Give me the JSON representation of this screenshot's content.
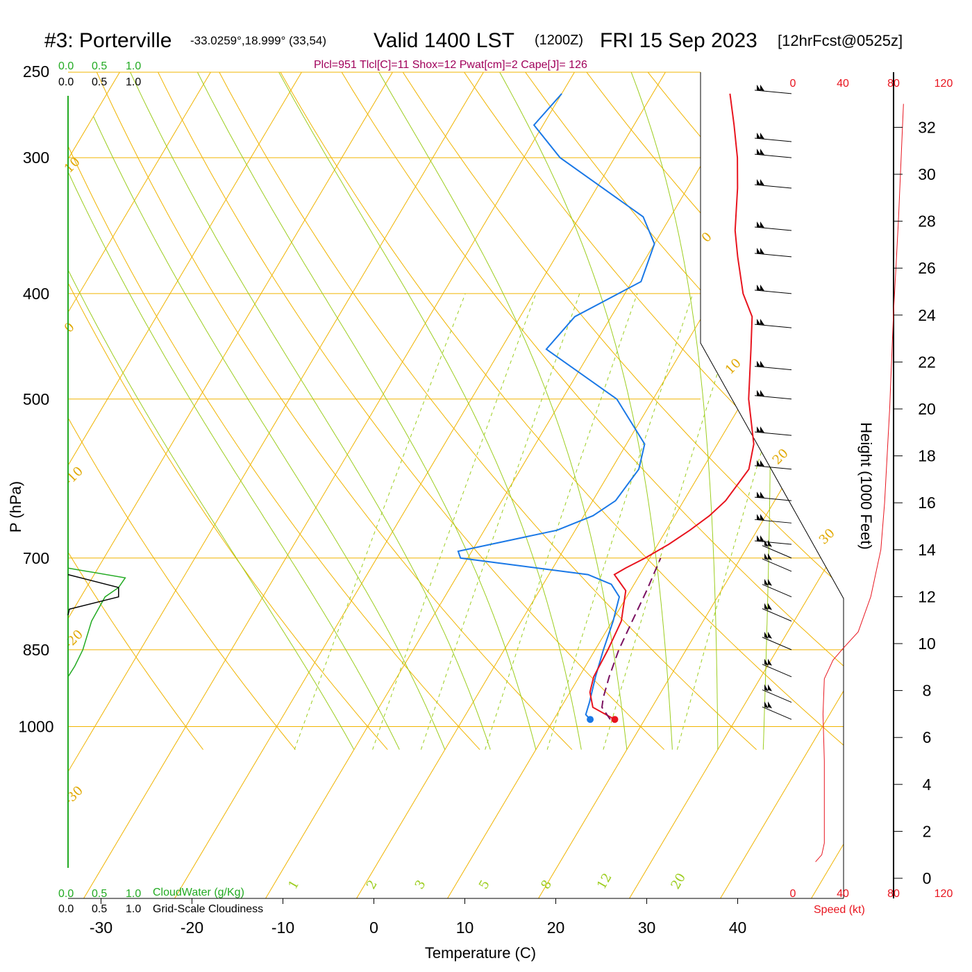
{
  "header": {
    "station_title": "#3: Porterville",
    "coords": "-33.0259°,18.999° (33,54)",
    "valid_main": "Valid 1400 LST",
    "valid_z": "(1200Z)",
    "valid_date": "FRI 15 Sep 2023",
    "forecast_info": "[12hrFcst@0525z]",
    "params": "Plcl=951 Tlcl[C]=11 Shox=12 Pwat[cm]=2 Cape[J]= 126"
  },
  "cloud_axis": {
    "top_green": [
      "0.0",
      "0.5",
      "1.0"
    ],
    "top_black": [
      "0.0",
      "0.5",
      "1.0"
    ],
    "bottom_green": [
      "0.0",
      "0.5",
      "1.0"
    ],
    "bottom_black": [
      "0.0",
      "0.5",
      "1.0"
    ],
    "cloudwater_label": "CloudWater (g/Kg)",
    "cloudiness_label": "Grid-Scale Cloudiness"
  },
  "speed_axis": {
    "ticks": [
      "0",
      "40",
      "80",
      "120"
    ],
    "label": "Speed (kt)"
  },
  "colors": {
    "temperature": "#e8141e",
    "dewpoint": "#1a78e6",
    "parcel": "#7a1060",
    "isotherm": "#f0b400",
    "adiabat_dry": "#f0b400",
    "adiabat_moist": "#9ccd1e",
    "mixing_ratio": "#9ccd1e",
    "cloudwater": "#22aa22",
    "cloudiness": "#000000",
    "speed": "#e8141e",
    "params_text": "#a0005a",
    "isotherm_label": "#e0a800",
    "mixing_label": "#9ccd1e"
  },
  "chart_data": {
    "type": "skew-t",
    "ylabel": "P (hPa)",
    "xlabel": "Temperature (C)",
    "right_label": "Height (1000 Feet)",
    "pressure_ticks": [
      "250",
      "300",
      "400",
      "500",
      "700",
      "850",
      "1000"
    ],
    "temperature_ticks": [
      "-30",
      "-20",
      "-10",
      "0",
      "10",
      "20",
      "30",
      "40"
    ],
    "height_ticks": [
      "0",
      "2",
      "4",
      "6",
      "8",
      "10",
      "12",
      "14",
      "16",
      "18",
      "20",
      "22",
      "24",
      "26",
      "28",
      "30",
      "32"
    ],
    "isotherm_labels": [
      {
        "text": "10",
        "t": 10
      },
      {
        "text": "0",
        "t": 0
      },
      {
        "text": "-10",
        "t": -10
      },
      {
        "text": "-20",
        "t": -20
      },
      {
        "text": "-30",
        "t": -30
      },
      {
        "text": "0",
        "t": 0
      },
      {
        "text": "10",
        "t": 10
      },
      {
        "text": "20",
        "t": 20
      },
      {
        "text": "30",
        "t": 30
      }
    ],
    "mixing_ratio_labels": [
      "1",
      "2",
      "3",
      "5",
      "8",
      "12",
      "20"
    ],
    "temperature": [
      {
        "p": 985,
        "t": 16.7
      },
      {
        "p": 960,
        "t": 13.5
      },
      {
        "p": 930,
        "t": 12.2
      },
      {
        "p": 900,
        "t": 11.6
      },
      {
        "p": 850,
        "t": 11.4
      },
      {
        "p": 800,
        "t": 11.0
      },
      {
        "p": 750,
        "t": 9.5
      },
      {
        "p": 725,
        "t": 7.2
      },
      {
        "p": 715,
        "t": 8.0
      },
      {
        "p": 700,
        "t": 9.5
      },
      {
        "p": 680,
        "t": 11.2
      },
      {
        "p": 660,
        "t": 12.6
      },
      {
        "p": 640,
        "t": 13.8
      },
      {
        "p": 620,
        "t": 14.6
      },
      {
        "p": 580,
        "t": 15.1
      },
      {
        "p": 550,
        "t": 14.0
      },
      {
        "p": 500,
        "t": 10.5
      },
      {
        "p": 450,
        "t": 7.5
      },
      {
        "p": 420,
        "t": 5.5
      },
      {
        "p": 400,
        "t": 3.0
      },
      {
        "p": 370,
        "t": 0.0
      },
      {
        "p": 350,
        "t": -2.0
      },
      {
        "p": 320,
        "t": -4.5
      },
      {
        "p": 300,
        "t": -6.5
      },
      {
        "p": 280,
        "t": -9.0
      },
      {
        "p": 262,
        "t": -11.5
      }
    ],
    "dewpoint": [
      {
        "p": 985,
        "t": 14.0
      },
      {
        "p": 975,
        "t": 13.2
      },
      {
        "p": 950,
        "t": 12.8
      },
      {
        "p": 900,
        "t": 11.8
      },
      {
        "p": 850,
        "t": 10.9
      },
      {
        "p": 800,
        "t": 10.1
      },
      {
        "p": 760,
        "t": 9.2
      },
      {
        "p": 740,
        "t": 7.5
      },
      {
        "p": 725,
        "t": 4.3
      },
      {
        "p": 700,
        "t": -10.8
      },
      {
        "p": 690,
        "t": -11.5
      },
      {
        "p": 660,
        "t": -2.0
      },
      {
        "p": 640,
        "t": 1.0
      },
      {
        "p": 620,
        "t": 2.5
      },
      {
        "p": 580,
        "t": 3.0
      },
      {
        "p": 550,
        "t": 2.0
      },
      {
        "p": 500,
        "t": -4.0
      },
      {
        "p": 450,
        "t": -15.0
      },
      {
        "p": 420,
        "t": -14.0
      },
      {
        "p": 390,
        "t": -9.0
      },
      {
        "p": 360,
        "t": -10.0
      },
      {
        "p": 340,
        "t": -13.0
      },
      {
        "p": 300,
        "t": -26.0
      },
      {
        "p": 280,
        "t": -31.0
      },
      {
        "p": 262,
        "t": -30.0
      }
    ],
    "parcel": [
      {
        "p": 985,
        "t": 16.2
      },
      {
        "p": 960,
        "t": 14.5
      },
      {
        "p": 940,
        "t": 14.0
      },
      {
        "p": 900,
        "t": 13.3
      },
      {
        "p": 850,
        "t": 12.6
      },
      {
        "p": 800,
        "t": 12.2
      },
      {
        "p": 750,
        "t": 11.8
      },
      {
        "p": 700,
        "t": 11.2
      }
    ],
    "surface_temp": 16.7,
    "surface_dewpoint": 14.0,
    "wind_profile": [
      {
        "p": 262,
        "spd": 20
      },
      {
        "p": 290,
        "spd": 20
      },
      {
        "p": 300,
        "spd": 20
      },
      {
        "p": 320,
        "spd": 20
      },
      {
        "p": 350,
        "spd": 20
      },
      {
        "p": 370,
        "spd": 25
      },
      {
        "p": 400,
        "spd": 25
      },
      {
        "p": 430,
        "spd": 20
      },
      {
        "p": 470,
        "spd": 25
      },
      {
        "p": 500,
        "spd": 25
      },
      {
        "p": 540,
        "spd": 25
      },
      {
        "p": 580,
        "spd": 25
      },
      {
        "p": 620,
        "spd": 20
      },
      {
        "p": 650,
        "spd": 20
      },
      {
        "p": 680,
        "spd": 20
      },
      {
        "p": 700,
        "spd": 20
      },
      {
        "p": 720,
        "spd": 20
      },
      {
        "p": 760,
        "spd": 20
      },
      {
        "p": 800,
        "spd": 20
      },
      {
        "p": 850,
        "spd": 20
      },
      {
        "p": 900,
        "spd": 20
      },
      {
        "p": 950,
        "spd": 20
      },
      {
        "p": 985,
        "spd": 20
      }
    ],
    "cloudwater": [
      {
        "p": 1000,
        "v": 0.0
      },
      {
        "p": 900,
        "v": 0.0
      },
      {
        "p": 880,
        "v": 0.1
      },
      {
        "p": 850,
        "v": 0.22
      },
      {
        "p": 800,
        "v": 0.35
      },
      {
        "p": 760,
        "v": 0.55
      },
      {
        "p": 745,
        "v": 0.75
      },
      {
        "p": 730,
        "v": 0.85
      },
      {
        "p": 715,
        "v": 0.0
      }
    ],
    "cloudiness": [
      {
        "p": 790,
        "v": 0.0
      },
      {
        "p": 780,
        "v": 0.02
      },
      {
        "p": 760,
        "v": 0.75
      },
      {
        "p": 745,
        "v": 0.75
      },
      {
        "p": 725,
        "v": 0.0
      }
    ],
    "speed_profile": [
      {
        "h": 0.7,
        "kt": 18
      },
      {
        "h": 1.0,
        "kt": 23
      },
      {
        "h": 1.5,
        "kt": 25
      },
      {
        "h": 3.0,
        "kt": 25
      },
      {
        "h": 5.0,
        "kt": 25
      },
      {
        "h": 7.0,
        "kt": 24
      },
      {
        "h": 8.5,
        "kt": 25
      },
      {
        "h": 9.3,
        "kt": 32
      },
      {
        "h": 9.8,
        "kt": 40
      },
      {
        "h": 10.5,
        "kt": 52
      },
      {
        "h": 12.0,
        "kt": 62
      },
      {
        "h": 14.0,
        "kt": 70
      },
      {
        "h": 16.0,
        "kt": 73
      },
      {
        "h": 20.0,
        "kt": 77
      },
      {
        "h": 24.0,
        "kt": 80
      },
      {
        "h": 28.0,
        "kt": 84
      },
      {
        "h": 33.0,
        "kt": 88
      }
    ]
  }
}
